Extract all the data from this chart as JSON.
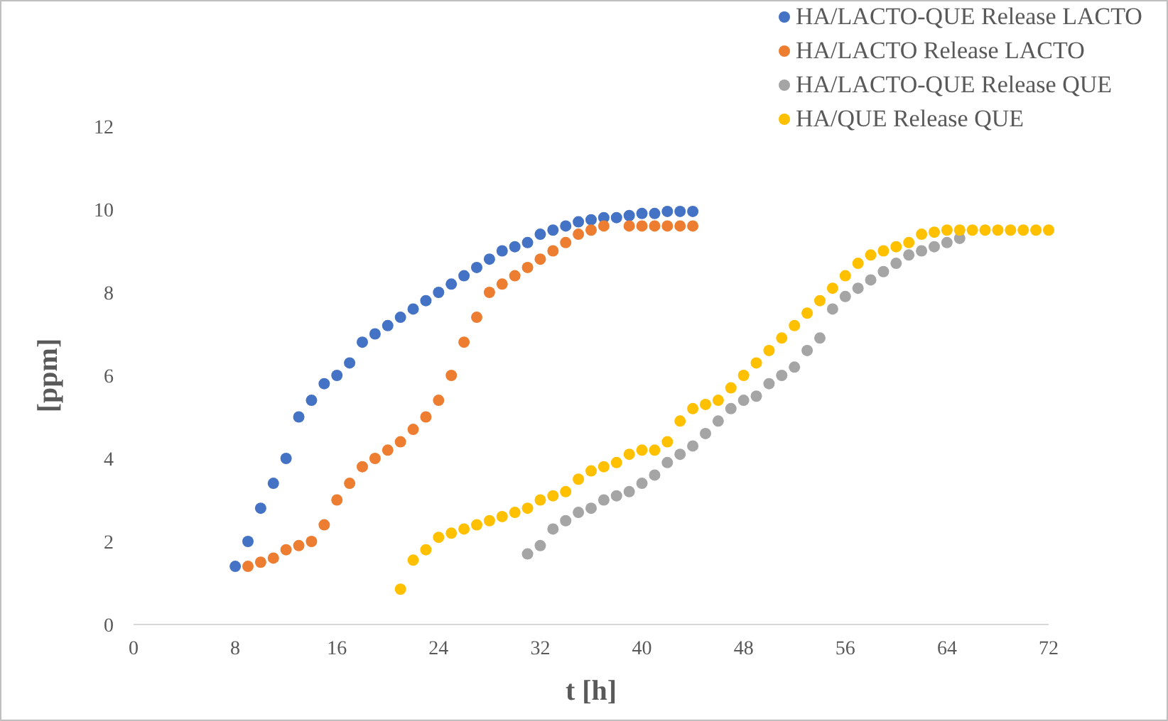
{
  "chart_data": {
    "type": "scatter",
    "xlabel": "t [h]",
    "ylabel": "[ppm]",
    "xlim": [
      0,
      72
    ],
    "xticks": [
      0,
      8,
      16,
      24,
      32,
      40,
      48,
      56,
      64,
      72
    ],
    "ylim": [
      0,
      12
    ],
    "yticks": [
      0,
      2,
      4,
      6,
      8,
      10,
      12
    ],
    "grid": false,
    "legend": "top right",
    "marker": "circle",
    "series": [
      {
        "name": "HA/LACTO-QUE Release LACTO",
        "color": "#4472c4",
        "x": [
          8,
          9,
          10,
          11,
          12,
          13,
          14,
          15,
          16,
          17,
          18,
          19,
          20,
          21,
          22,
          23,
          24,
          25,
          26,
          27,
          28,
          29,
          30,
          31,
          32,
          33,
          34,
          35,
          36,
          37,
          38,
          39,
          40,
          41,
          42,
          43,
          44
        ],
        "values": [
          1.4,
          2.0,
          2.8,
          3.4,
          4.0,
          5.0,
          5.4,
          5.8,
          6.0,
          6.3,
          6.8,
          7.0,
          7.2,
          7.4,
          7.6,
          7.8,
          8.0,
          8.2,
          8.4,
          8.6,
          8.8,
          9.0,
          9.1,
          9.2,
          9.4,
          9.5,
          9.6,
          9.7,
          9.75,
          9.8,
          9.8,
          9.85,
          9.9,
          9.9,
          9.95,
          9.95,
          9.95
        ]
      },
      {
        "name": "HA/LACTO Release LACTO",
        "color": "#ed7d31",
        "x": [
          9,
          10,
          11,
          12,
          13,
          14,
          15,
          16,
          17,
          18,
          19,
          20,
          21,
          22,
          23,
          24,
          25,
          26,
          27,
          28,
          29,
          30,
          31,
          32,
          33,
          34,
          35,
          36,
          37,
          39,
          40,
          41,
          42,
          43,
          44
        ],
        "values": [
          1.4,
          1.5,
          1.6,
          1.8,
          1.9,
          2.0,
          2.4,
          3.0,
          3.4,
          3.8,
          4.0,
          4.2,
          4.4,
          4.7,
          5.0,
          5.4,
          6.0,
          6.8,
          7.4,
          8.0,
          8.2,
          8.4,
          8.6,
          8.8,
          9.0,
          9.2,
          9.4,
          9.5,
          9.6,
          9.6,
          9.6,
          9.6,
          9.6,
          9.6,
          9.6
        ]
      },
      {
        "name": "HA/LACTO-QUE Release QUE",
        "color": "#a5a5a5",
        "x": [
          31,
          32,
          33,
          34,
          35,
          36,
          37,
          38,
          39,
          40,
          41,
          42,
          43,
          44,
          45,
          46,
          47,
          48,
          49,
          50,
          51,
          52,
          53,
          54,
          55,
          56,
          57,
          58,
          59,
          60,
          61,
          62,
          63,
          64,
          65
        ],
        "values": [
          1.7,
          1.9,
          2.3,
          2.5,
          2.7,
          2.8,
          3.0,
          3.1,
          3.2,
          3.4,
          3.6,
          3.9,
          4.1,
          4.3,
          4.6,
          4.9,
          5.2,
          5.4,
          5.5,
          5.8,
          6.0,
          6.2,
          6.6,
          6.9,
          7.6,
          7.9,
          8.1,
          8.3,
          8.5,
          8.7,
          8.9,
          9.0,
          9.1,
          9.2,
          9.3
        ]
      },
      {
        "name": "HA/QUE Release QUE",
        "color": "#ffc000",
        "x": [
          21,
          22,
          23,
          24,
          25,
          26,
          27,
          28,
          29,
          30,
          31,
          32,
          33,
          34,
          35,
          36,
          37,
          38,
          39,
          40,
          41,
          42,
          43,
          44,
          45,
          46,
          47,
          48,
          49,
          50,
          51,
          52,
          53,
          54,
          55,
          56,
          57,
          58,
          59,
          60,
          61,
          62,
          63,
          64,
          65,
          66,
          67,
          68,
          69,
          70,
          71,
          72
        ],
        "values": [
          0.85,
          1.55,
          1.8,
          2.1,
          2.2,
          2.3,
          2.4,
          2.5,
          2.6,
          2.7,
          2.8,
          3.0,
          3.1,
          3.2,
          3.5,
          3.7,
          3.8,
          3.9,
          4.1,
          4.2,
          4.2,
          4.4,
          4.9,
          5.2,
          5.3,
          5.4,
          5.7,
          6.0,
          6.3,
          6.6,
          6.9,
          7.2,
          7.5,
          7.8,
          8.1,
          8.4,
          8.7,
          8.9,
          9.0,
          9.1,
          9.2,
          9.4,
          9.45,
          9.5,
          9.5,
          9.5,
          9.5,
          9.5,
          9.5,
          9.5,
          9.5,
          9.5
        ]
      }
    ]
  }
}
